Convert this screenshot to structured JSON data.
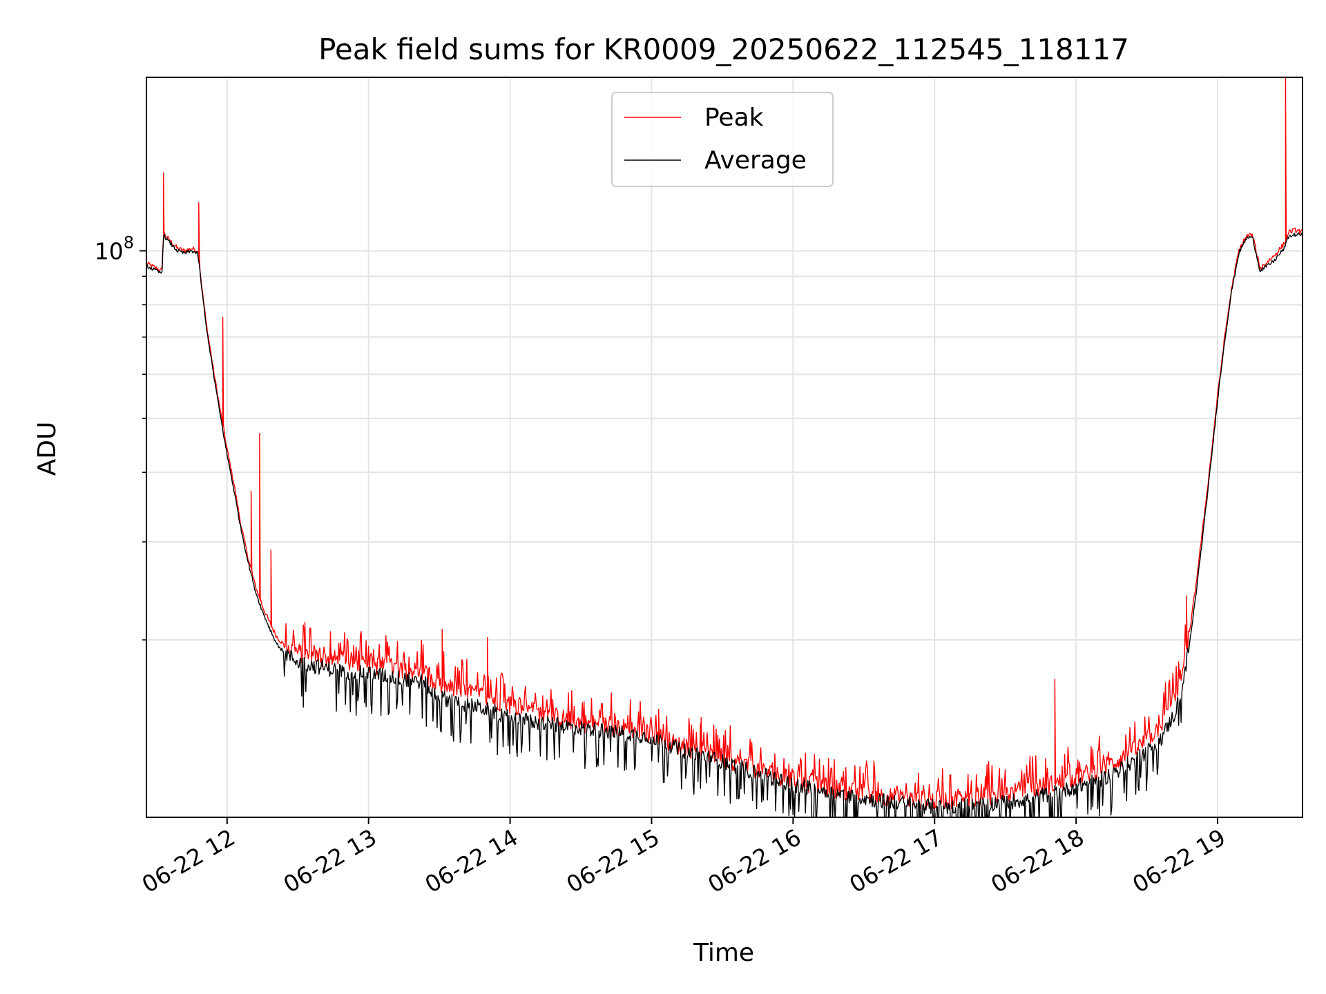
{
  "chart_data": {
    "type": "line",
    "title": "Peak field sums for KR0009_20250622_112545_118117",
    "xlabel": "Time",
    "ylabel": "ADU",
    "x_unit": "hours on 06-22",
    "xlim": [
      11.43,
      19.6
    ],
    "ylim": [
      9600000.0,
      205000000.0
    ],
    "yscale": "log",
    "grid": true,
    "legend_position": "upper center",
    "x_ticks": [
      {
        "value": 12,
        "label": "06-22 12"
      },
      {
        "value": 13,
        "label": "06-22 13"
      },
      {
        "value": 14,
        "label": "06-22 14"
      },
      {
        "value": 15,
        "label": "06-22 15"
      },
      {
        "value": 16,
        "label": "06-22 16"
      },
      {
        "value": 17,
        "label": "06-22 17"
      },
      {
        "value": 18,
        "label": "06-22 18"
      },
      {
        "value": 19,
        "label": "06-22 19"
      }
    ],
    "y_major_ticks": [
      {
        "value": 100000000,
        "base": "10",
        "exponent": "8"
      }
    ],
    "y_minor_ticks": [
      20000000,
      30000000,
      40000000,
      50000000,
      60000000,
      70000000,
      80000000,
      90000000
    ],
    "series": [
      {
        "name": "Peak",
        "color": "#ff0000",
        "x": [
          11.43,
          11.5,
          11.54,
          11.55,
          11.56,
          11.6,
          11.65,
          11.7,
          11.75,
          11.79,
          11.8,
          11.82,
          11.85,
          11.9,
          11.95,
          12.0,
          12.05,
          12.1,
          12.15,
          12.2,
          12.25,
          12.3,
          12.35,
          12.4,
          12.5,
          12.6,
          12.7,
          12.8,
          13.0,
          13.2,
          13.4,
          13.45,
          13.6,
          13.8,
          14.0,
          14.2,
          14.5,
          14.8,
          15.0,
          15.2,
          15.5,
          15.8,
          16.0,
          16.3,
          16.6,
          16.9,
          17.0,
          17.3,
          17.6,
          17.9,
          18.2,
          18.4,
          18.5,
          18.6,
          18.7,
          18.75,
          18.8,
          18.85,
          18.9,
          18.95,
          19.0,
          19.05,
          19.1,
          19.15,
          19.2,
          19.23,
          19.25,
          19.3,
          19.4,
          19.47,
          19.5,
          19.55,
          19.6
        ],
        "y": [
          95000000,
          93000000,
          92000000,
          108000000,
          107000000,
          104000000,
          101000000,
          100000000,
          101000000,
          100000000,
          97000000,
          87000000,
          75000000,
          62000000,
          52000000,
          44000000,
          38000000,
          32000000,
          28000000,
          25000000,
          23000000,
          21500000,
          20300000,
          19600000,
          19000000,
          18700000,
          18500000,
          18400000,
          18100000,
          17800000,
          17500000,
          16700000,
          16300000,
          15900000,
          15300000,
          14800000,
          14200000,
          13900000,
          13600000,
          12900000,
          12300000,
          11600000,
          11200000,
          10800000,
          10500000,
          10300000,
          10300000,
          10400000,
          10700000,
          11100000,
          11800000,
          12600000,
          13200000,
          14100000,
          15800000,
          17500000,
          20500000,
          25500000,
          32500000,
          42000000,
          55000000,
          70000000,
          86000000,
          100000000,
          106000000,
          107000000,
          106000000,
          93000000,
          98000000,
          103000000,
          108000000,
          109000000,
          108000000
        ],
        "spikes": [
          {
            "x": 11.55,
            "y": 138000000
          },
          {
            "x": 11.8,
            "y": 122000000
          },
          {
            "x": 11.97,
            "y": 76000000
          },
          {
            "x": 12.17,
            "y": 37000000
          },
          {
            "x": 12.23,
            "y": 47000000
          },
          {
            "x": 12.31,
            "y": 29000000
          },
          {
            "x": 12.55,
            "y": 21500000
          },
          {
            "x": 12.73,
            "y": 20700000
          },
          {
            "x": 13.52,
            "y": 20900000
          },
          {
            "x": 13.84,
            "y": 20200000
          },
          {
            "x": 15.05,
            "y": 15000000
          },
          {
            "x": 15.35,
            "y": 14500000
          },
          {
            "x": 17.85,
            "y": 17000000
          },
          {
            "x": 18.78,
            "y": 24000000
          },
          {
            "x": 19.48,
            "y": 205000000
          }
        ]
      },
      {
        "name": "Average",
        "color": "#000000",
        "x": [
          11.43,
          11.5,
          11.54,
          11.55,
          11.56,
          11.6,
          11.65,
          11.7,
          11.75,
          11.79,
          11.8,
          11.82,
          11.85,
          11.9,
          11.95,
          12.0,
          12.05,
          12.1,
          12.15,
          12.2,
          12.25,
          12.3,
          12.35,
          12.4,
          12.5,
          12.6,
          12.7,
          12.8,
          13.0,
          13.2,
          13.4,
          13.45,
          13.6,
          13.8,
          14.0,
          14.2,
          14.5,
          14.8,
          15.0,
          15.2,
          15.5,
          15.8,
          16.0,
          16.3,
          16.6,
          16.9,
          17.0,
          17.3,
          17.6,
          17.9,
          18.2,
          18.4,
          18.5,
          18.6,
          18.7,
          18.75,
          18.8,
          18.85,
          18.9,
          18.95,
          19.0,
          19.05,
          19.1,
          19.15,
          19.2,
          19.23,
          19.25,
          19.3,
          19.4,
          19.47,
          19.5,
          19.55,
          19.6
        ],
        "y": [
          94000000,
          92000000,
          91000000,
          107000000,
          106000000,
          103000000,
          100000000,
          99000000,
          100000000,
          99000000,
          96000000,
          86000000,
          74000000,
          61000000,
          51000000,
          43000000,
          37000000,
          31500000,
          27500000,
          24500000,
          22500000,
          21000000,
          19700000,
          19000000,
          18300000,
          18000000,
          17800000,
          17600000,
          17400000,
          17100000,
          16800000,
          16000000,
          15500000,
          15100000,
          14500000,
          14200000,
          13900000,
          13600000,
          13400000,
          12700000,
          12100000,
          11400000,
          11000000,
          10600000,
          10300000,
          10100000,
          10000000,
          10100000,
          10300000,
          10700000,
          11300000,
          12100000,
          12600000,
          13300000,
          14800000,
          16500000,
          19500000,
          24500000,
          31500000,
          41000000,
          54000000,
          69000000,
          85000000,
          99000000,
          105000000,
          106000000,
          105000000,
          92000000,
          96000000,
          101000000,
          106000000,
          107000000,
          107000000
        ]
      }
    ]
  }
}
